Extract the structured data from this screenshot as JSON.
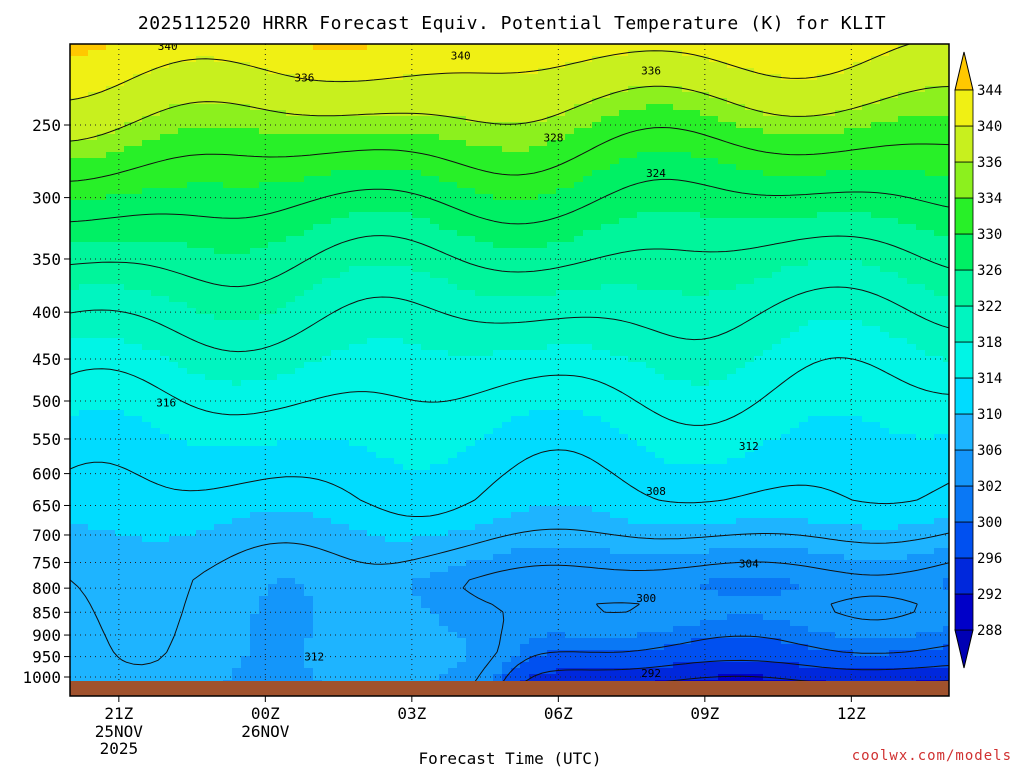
{
  "chart_data": {
    "type": "heatmap",
    "title": "2025112520 HRRR Forecast Equiv. Potential Temperature (K) for KLIT",
    "xlabel": "Forecast Time (UTC)",
    "ylabel": "",
    "credit": "coolwx.com/models",
    "x_ticks": [
      {
        "label": "21Z",
        "hour": 0,
        "sub": [
          "25NOV",
          "2025"
        ]
      },
      {
        "label": "00Z",
        "hour": 3,
        "sub": [
          "26NOV"
        ]
      },
      {
        "label": "03Z",
        "hour": 6,
        "sub": []
      },
      {
        "label": "06Z",
        "hour": 9,
        "sub": []
      },
      {
        "label": "09Z",
        "hour": 12,
        "sub": []
      },
      {
        "label": "12Z",
        "hour": 15,
        "sub": []
      }
    ],
    "x_range_hours": [
      -1,
      17
    ],
    "y_ticks": [
      1000,
      950,
      900,
      850,
      800,
      750,
      700,
      650,
      600,
      550,
      500,
      450,
      400,
      350,
      300,
      250
    ],
    "y_range_hpa": [
      1000,
      200
    ],
    "colorbar": {
      "levels": [
        288,
        292,
        296,
        300,
        302,
        306,
        310,
        314,
        318,
        322,
        326,
        330,
        334,
        336,
        340,
        344
      ],
      "colors": [
        "#0000c8",
        "#0028dc",
        "#0050f0",
        "#0a78f5",
        "#1496fa",
        "#1eb4ff",
        "#00dcff",
        "#00f5e6",
        "#00f5c0",
        "#00f59b",
        "#00f064",
        "#28f028",
        "#8cf01e",
        "#c8f01e",
        "#f0f014",
        "#ffd700"
      ],
      "extend_low": "#0000b4",
      "extend_high": "#ffc800"
    },
    "contour_levels": [
      288,
      292,
      296,
      300,
      304,
      308,
      312,
      316,
      320,
      324,
      328,
      332,
      336,
      340
    ],
    "contour_labels": [
      {
        "text": "340",
        "hour": 1.0,
        "hpa": 205
      },
      {
        "text": "340",
        "hour": 7.0,
        "hpa": 210
      },
      {
        "text": "336",
        "hour": 3.8,
        "hpa": 222
      },
      {
        "text": "336",
        "hour": 10.9,
        "hpa": 218
      },
      {
        "text": "328",
        "hour": 8.9,
        "hpa": 258
      },
      {
        "text": "324",
        "hour": 11.0,
        "hpa": 282
      },
      {
        "text": "316",
        "hour": 0.97,
        "hpa": 502
      },
      {
        "text": "312",
        "hour": 12.9,
        "hpa": 560
      },
      {
        "text": "308",
        "hour": 11.0,
        "hpa": 627
      },
      {
        "text": "304",
        "hour": 12.9,
        "hpa": 752
      },
      {
        "text": "300",
        "hour": 10.8,
        "hpa": 820
      },
      {
        "text": "312",
        "hour": 4.0,
        "hpa": 950
      },
      {
        "text": "292",
        "hour": 10.9,
        "hpa": 990
      }
    ],
    "grid": true,
    "ground_color": "#a0522d"
  }
}
